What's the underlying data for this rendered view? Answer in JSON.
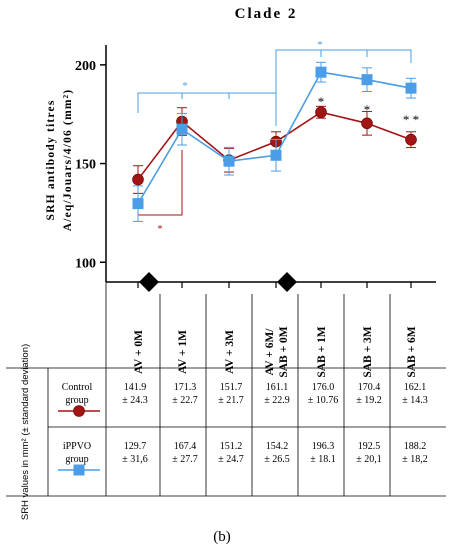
{
  "chart_data": {
    "type": "line",
    "title": "Clade 2",
    "ylabel_line1": "SRH antibody titres",
    "ylabel_line2": "A/eq/Jouars/4/06 (mm²)",
    "ylim": [
      90,
      205
    ],
    "yticks": [
      "100",
      "150",
      "200"
    ],
    "ytick_values": [
      100,
      150,
      200
    ],
    "categories": [
      "AV + 0M",
      "AV + 1M",
      "AV + 3M",
      "AV + 6M/",
      "SAB + 1M",
      "SAB + 3M",
      "SAB + 6M"
    ],
    "category_line2": [
      "",
      "",
      "",
      "SAB + 0M",
      "",
      "",
      ""
    ],
    "series": [
      {
        "name": "Control group",
        "color": "#a31515",
        "marker": "circle",
        "values": [
          141.9,
          171.3,
          151.7,
          161.1,
          176.0,
          170.4,
          162.1
        ],
        "errors": [
          7,
          7,
          6,
          5,
          3,
          6,
          4
        ]
      },
      {
        "name": "iPPVO group",
        "color": "#4a9de6",
        "marker": "square",
        "values": [
          129.7,
          167.4,
          151.2,
          154.2,
          196.3,
          192.5,
          188.2
        ],
        "errors": [
          9,
          8,
          7,
          8,
          5,
          6,
          5
        ]
      }
    ],
    "significance": [
      {
        "symbol": "*",
        "color": "#4a9de6",
        "span": "AV + 0M to AV + 6M"
      },
      {
        "symbol": "*",
        "color": "#4a9de6",
        "span": "AV + 6M to SAB + 6M"
      },
      {
        "symbol": "*",
        "color": "#a31515",
        "span": "AV + 0M to AV + 1M"
      },
      {
        "symbol": "*",
        "point": "SAB + 1M"
      },
      {
        "symbol": "*",
        "point": "SAB + 3M"
      },
      {
        "symbol": "* *",
        "point": "SAB + 6M"
      }
    ],
    "vaccination_markers": [
      "AV + 0M",
      "AV + 6M/SAB + 0M"
    ]
  },
  "table": {
    "row_header": "SRH values in mm² (± standard deviation)",
    "rows": [
      {
        "group_line1": "Control",
        "group_line2": "group",
        "cells": [
          [
            "141.9",
            "± 24.3"
          ],
          [
            "171.3",
            "± 22.7"
          ],
          [
            "151.7",
            "± 21.7"
          ],
          [
            "161.1",
            "± 22.9"
          ],
          [
            "176.0",
            "± 10.76"
          ],
          [
            "170.4",
            "± 19.2"
          ],
          [
            "162.1",
            "± 14.3"
          ]
        ]
      },
      {
        "group_line1": "iPPVO",
        "group_line2": "group",
        "cells": [
          [
            "129.7",
            "± 31,6"
          ],
          [
            "167.4",
            "± 27.7"
          ],
          [
            "151.2",
            "±   24.7"
          ],
          [
            "154.2",
            "± 26.5"
          ],
          [
            "196.3",
            "± 18.1"
          ],
          [
            "192.5",
            "± 20,1"
          ],
          [
            "188.2",
            "± 18,2"
          ]
        ]
      }
    ]
  },
  "panel_label": "(b)"
}
